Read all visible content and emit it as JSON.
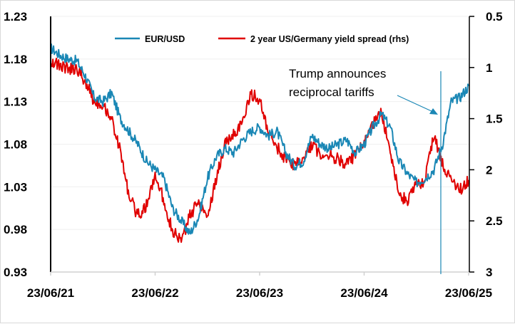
{
  "chart_data": {
    "type": "line",
    "title": "",
    "xlabel": "",
    "ylabel_left": "",
    "ylabel_right": "",
    "x_ticks": [
      "23/06/21",
      "23/06/22",
      "23/06/23",
      "23/06/24",
      "23/06/25"
    ],
    "x_range": [
      "2021-06-23",
      "2025-06-23"
    ],
    "y_left": {
      "range": [
        0.93,
        1.23
      ],
      "ticks": [
        "1.23",
        "1.18",
        "1.13",
        "1.08",
        "1.03",
        "0.98",
        "0.93"
      ]
    },
    "y_right": {
      "range": [
        0.5,
        3
      ],
      "inverted": true,
      "ticks": [
        "0.5",
        "1",
        "1.5",
        "2",
        "2.5",
        "3"
      ]
    },
    "grid": "horizontal",
    "legend": {
      "placement": "top",
      "entries": [
        "EUR/USD",
        "2 year US/Germany yield spread (rhs)"
      ]
    },
    "series": [
      {
        "name": "EUR/USD",
        "axis": "left",
        "color": "#1a87b5",
        "x_unit": "months since 2021-06-23",
        "x": [
          0,
          1,
          2,
          3,
          4,
          5,
          6,
          7,
          8,
          9,
          10,
          11,
          12,
          13,
          14,
          15,
          16,
          17,
          18,
          19,
          20,
          21,
          22,
          23,
          24,
          25,
          26,
          27,
          28,
          29,
          30,
          31,
          32,
          33,
          34,
          35,
          36,
          37,
          38,
          39,
          40,
          41,
          42,
          43,
          44,
          45,
          46,
          47,
          48
        ],
        "values": [
          1.193,
          1.185,
          1.18,
          1.178,
          1.16,
          1.135,
          1.13,
          1.14,
          1.11,
          1.095,
          1.08,
          1.06,
          1.05,
          1.04,
          1.005,
          0.99,
          0.975,
          0.995,
          1.04,
          1.065,
          1.075,
          1.07,
          1.085,
          1.095,
          1.1,
          1.09,
          1.095,
          1.07,
          1.055,
          1.06,
          1.09,
          1.08,
          1.075,
          1.08,
          1.085,
          1.07,
          1.08,
          1.1,
          1.115,
          1.1,
          1.06,
          1.045,
          1.035,
          1.04,
          1.05,
          1.08,
          1.13,
          1.135,
          1.148
        ]
      },
      {
        "name": "2 year US/Germany yield spread (rhs)",
        "axis": "right",
        "color": "#e00000",
        "x_unit": "months since 2021-06-23",
        "x": [
          0,
          1,
          2,
          3,
          4,
          5,
          6,
          7,
          8,
          9,
          10,
          11,
          12,
          13,
          14,
          15,
          16,
          17,
          18,
          19,
          20,
          21,
          22,
          23,
          24,
          25,
          26,
          27,
          28,
          29,
          30,
          31,
          32,
          33,
          34,
          35,
          36,
          37,
          38,
          39,
          40,
          41,
          42,
          43,
          44,
          45,
          46,
          47,
          48
        ],
        "values": [
          0.93,
          0.98,
          1.01,
          1.02,
          1.14,
          1.33,
          1.36,
          1.5,
          1.82,
          2.25,
          2.45,
          2.35,
          2.05,
          2.3,
          2.6,
          2.7,
          2.45,
          2.3,
          2.45,
          2.1,
          1.75,
          1.65,
          1.55,
          1.25,
          1.32,
          1.65,
          1.78,
          1.9,
          1.95,
          1.9,
          1.75,
          1.85,
          1.85,
          1.9,
          1.95,
          1.85,
          1.75,
          1.55,
          1.45,
          1.8,
          2.25,
          2.3,
          2.15,
          2.1,
          1.65,
          1.95,
          2.1,
          2.2,
          2.1
        ]
      }
    ],
    "annotations": [
      {
        "text_lines": [
          "Trump announces",
          "reciprocal tariffs"
        ],
        "event_date": "2025-04-02",
        "marker": "vertical line with arrow",
        "color": "#1a87b5"
      }
    ]
  }
}
